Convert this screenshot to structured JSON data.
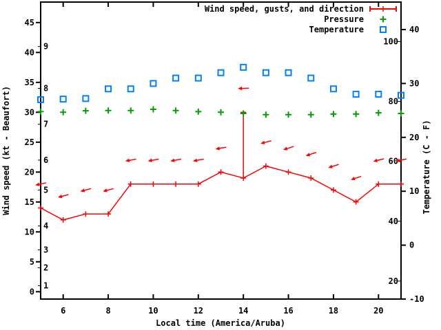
{
  "chart_data": {
    "type": "line",
    "title": "",
    "xlabel": "Local time (America/Aruba)",
    "ylabel_left": "Wind speed (kt - Beaufort)",
    "ylabel_right": "Temperature (C - F)",
    "grid": false,
    "legend_position": "top-right-inside",
    "x_hours": [
      5,
      6,
      7,
      8,
      9,
      10,
      11,
      12,
      13,
      14,
      15,
      16,
      17,
      18,
      19,
      20,
      21
    ],
    "xlim": [
      5,
      21
    ],
    "x_tick_labels": [
      "6",
      "8",
      "10",
      "12",
      "14",
      "16",
      "18",
      "20"
    ],
    "x_ticks": [
      6,
      8,
      10,
      12,
      14,
      16,
      18,
      20
    ],
    "y_left_axis": {
      "unit": "kt",
      "tick_values": [
        0,
        5,
        10,
        15,
        20,
        25,
        30,
        35,
        40,
        45
      ],
      "tick_labels": [
        "0",
        "5",
        "10",
        "15",
        "20",
        "25",
        "30",
        "35",
        "40",
        "45"
      ]
    },
    "beaufort_scale_labels": [
      {
        "label": "1",
        "kt": 1
      },
      {
        "label": "2",
        "kt": 4
      },
      {
        "label": "3",
        "kt": 7
      },
      {
        "label": "4",
        "kt": 11
      },
      {
        "label": "5",
        "kt": 17
      },
      {
        "label": "6",
        "kt": 22
      },
      {
        "label": "7",
        "kt": 28
      },
      {
        "label": "8",
        "kt": 34
      },
      {
        "label": "9",
        "kt": 41
      }
    ],
    "y_right_axis": {
      "unit": "C",
      "tick_values": [
        -10,
        0,
        10,
        20,
        30,
        40
      ],
      "tick_labels": [
        "-10",
        "0",
        "10",
        "20",
        "30",
        "40"
      ]
    },
    "fahrenheit_inside_labels": [
      {
        "label": "20",
        "f": 20
      },
      {
        "label": "40",
        "f": 40
      },
      {
        "label": "60",
        "f": 60
      },
      {
        "label": "80",
        "f": 80
      },
      {
        "label": "100",
        "f": 100
      }
    ],
    "series": [
      {
        "name": "Wind speed, gusts, and direction",
        "key": "wind",
        "color": "#ff0000",
        "marker": "plus-errorbar-arrow",
        "wind_speed_kt": [
          14,
          12,
          13,
          13,
          18,
          18,
          18,
          18,
          20,
          19,
          21,
          20,
          19,
          17,
          15,
          18,
          18
        ],
        "gust_kt": [
          14,
          12,
          13,
          13,
          18,
          18,
          18,
          18,
          20,
          30,
          21,
          20,
          19,
          17,
          15,
          18,
          18
        ],
        "arrow_height_kt": [
          18,
          16,
          17,
          17,
          22,
          22,
          22,
          22,
          24,
          34,
          25,
          24,
          23,
          21,
          19,
          22,
          22
        ],
        "arrow_tilt_deg": [
          12,
          15,
          15,
          15,
          10,
          10,
          10,
          10,
          10,
          2,
          15,
          18,
          18,
          18,
          18,
          14,
          12
        ]
      },
      {
        "name": "Pressure",
        "key": "pressure",
        "color": "#00a000",
        "marker": "plus",
        "values_kt_axis": [
          30.1,
          30.0,
          30.25,
          30.3,
          30.3,
          30.5,
          30.3,
          30.1,
          30.0,
          29.8,
          29.6,
          29.6,
          29.6,
          29.7,
          29.7,
          29.9,
          29.8
        ]
      },
      {
        "name": "Temperature",
        "key": "temperature",
        "color": "#0080ff",
        "marker": "open-square",
        "values_c": [
          27,
          27.1,
          27.2,
          29,
          29,
          30,
          31,
          31,
          32,
          33,
          32,
          32,
          31,
          29,
          28,
          28,
          27.8
        ]
      }
    ],
    "legend": [
      {
        "label": "Wind speed, gusts, and direction",
        "color": "#ff0000",
        "sample": "errorbar"
      },
      {
        "label": "Pressure",
        "color": "#00a000",
        "sample": "plus"
      },
      {
        "label": "Temperature",
        "color": "#0080ff",
        "sample": "square"
      }
    ]
  }
}
